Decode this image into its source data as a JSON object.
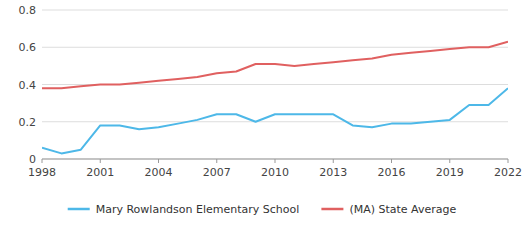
{
  "chart_data": {
    "type": "line",
    "x": [
      1998,
      1999,
      2000,
      2001,
      2002,
      2003,
      2004,
      2005,
      2006,
      2007,
      2008,
      2009,
      2010,
      2011,
      2012,
      2013,
      2014,
      2015,
      2016,
      2017,
      2018,
      2019,
      2020,
      2021,
      2022
    ],
    "series": [
      {
        "name": "Mary Rowlandson Elementary School",
        "color": "#4db8e8",
        "values": [
          0.06,
          0.03,
          0.05,
          0.18,
          0.18,
          0.16,
          0.17,
          0.19,
          0.21,
          0.24,
          0.24,
          0.2,
          0.24,
          0.24,
          0.24,
          0.24,
          0.18,
          0.17,
          0.19,
          0.19,
          0.2,
          0.21,
          0.29,
          0.29,
          0.38
        ]
      },
      {
        "name": "(MA) State Average",
        "color": "#e06060",
        "values": [
          0.38,
          0.38,
          0.39,
          0.4,
          0.4,
          0.41,
          0.42,
          0.43,
          0.44,
          0.46,
          0.47,
          0.51,
          0.51,
          0.5,
          0.51,
          0.52,
          0.53,
          0.54,
          0.56,
          0.57,
          0.58,
          0.59,
          0.6,
          0.6,
          0.63
        ]
      }
    ],
    "xlim": [
      1998,
      2022
    ],
    "xticks": [
      1998,
      2001,
      2004,
      2007,
      2010,
      2013,
      2016,
      2019,
      2022
    ],
    "ylim": [
      0,
      0.8
    ],
    "yticks": [
      0,
      0.2,
      0.4,
      0.6,
      0.8
    ],
    "grid": "y",
    "legend": "bottom"
  }
}
